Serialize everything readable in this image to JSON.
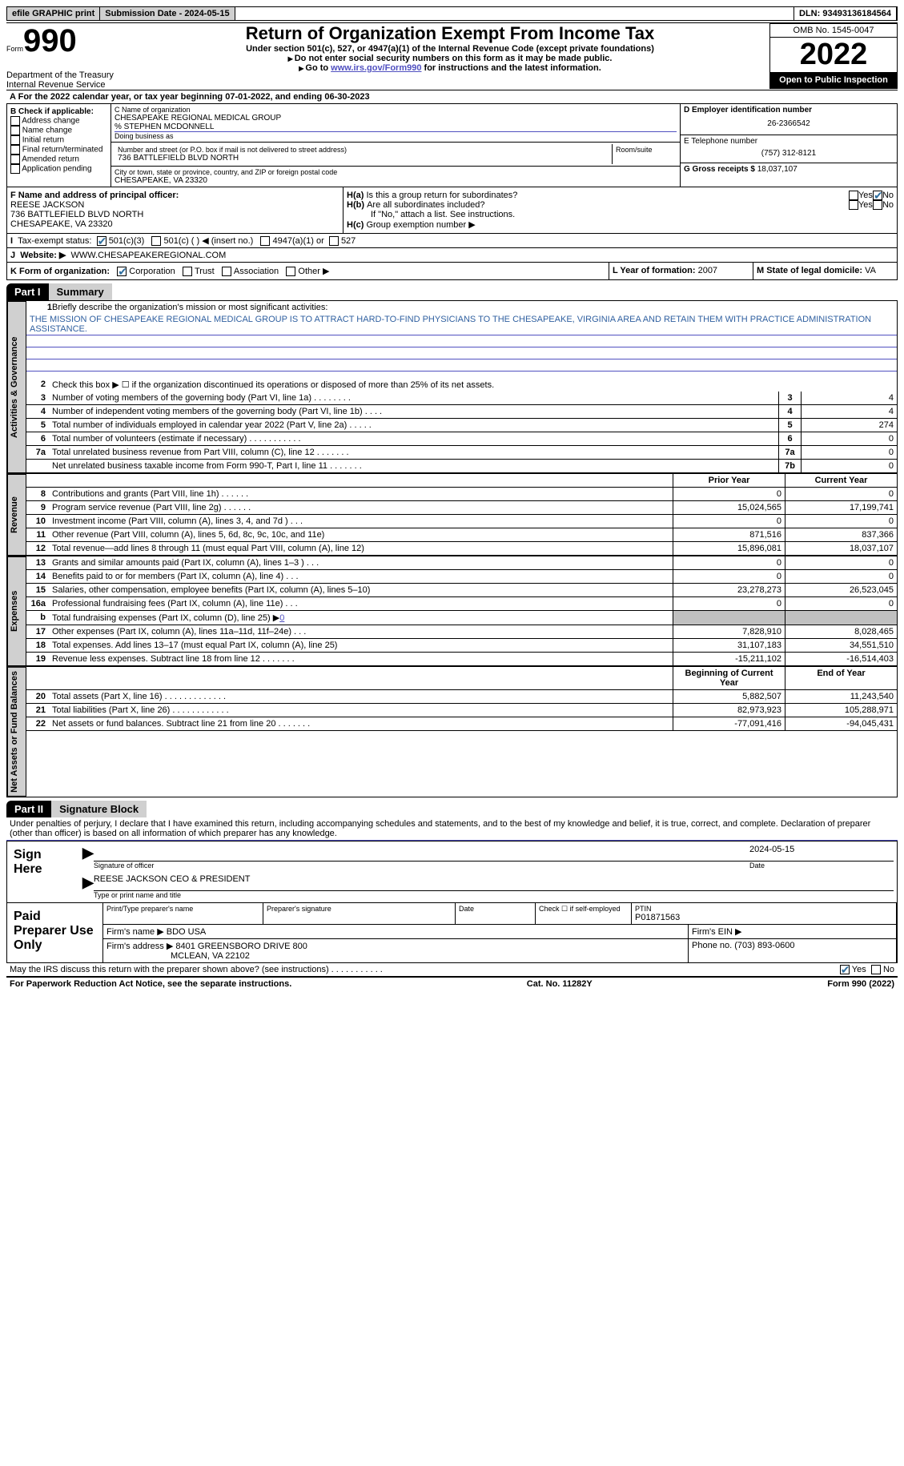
{
  "topbar": {
    "efile": "efile GRAPHIC print",
    "submission": "Submission Date - 2024-05-15",
    "dln": "DLN: 93493136184564"
  },
  "header": {
    "form_label": "Form",
    "form_num": "990",
    "title": "Return of Organization Exempt From Income Tax",
    "subtitle": "Under section 501(c), 527, or 4947(a)(1) of the Internal Revenue Code (except private foundations)",
    "warning": "Do not enter social security numbers on this form as it may be made public.",
    "goto_pre": "Go to ",
    "goto_link": "www.irs.gov/Form990",
    "goto_post": " for instructions and the latest information.",
    "omb": "OMB No. 1545-0047",
    "year": "2022",
    "open": "Open to Public Inspection",
    "dept": "Department of the Treasury",
    "irs": "Internal Revenue Service"
  },
  "line_a": {
    "pre": "For the 2022 calendar year, or tax year beginning ",
    "begin": "07-01-2022",
    "mid": ", and ending ",
    "end": "06-30-2023"
  },
  "col_b": {
    "label": "B Check if applicable:",
    "items": [
      "Address change",
      "Name change",
      "Initial return",
      "Final return/terminated",
      "Amended return",
      "Application pending"
    ]
  },
  "col_c": {
    "name_label": "C Name of organization",
    "name": "CHESAPEAKE REGIONAL MEDICAL GROUP",
    "care_of": "% STEPHEN MCDONNELL",
    "dba_label": "Doing business as",
    "street_label": "Number and street (or P.O. box if mail is not delivered to street address)",
    "room_label": "Room/suite",
    "street": "736 BATTLEFIELD BLVD NORTH",
    "city_label": "City or town, state or province, country, and ZIP or foreign postal code",
    "city": "CHESAPEAKE, VA  23320"
  },
  "col_d": {
    "ein_label": "D Employer identification number",
    "ein": "26-2366542",
    "phone_label": "E Telephone number",
    "phone": "(757) 312-8121",
    "gross_label": "G Gross receipts $",
    "gross": "18,037,107"
  },
  "officer": {
    "label": "F  Name and address of principal officer:",
    "name": "REESE JACKSON",
    "street": "736 BATTLEFIELD BLVD NORTH",
    "city": "CHESAPEAKE, VA  23320"
  },
  "h": {
    "a": "Is this a group return for subordinates?",
    "b": "Are all subordinates included?",
    "b_note": "If \"No,\" attach a list. See instructions.",
    "c": "Group exemption number ▶"
  },
  "tax_status": {
    "label": "Tax-exempt status:",
    "c3": "501(c)(3)",
    "c_other": "501(c) (  ) ◀ (insert no.)",
    "a1": "4947(a)(1) or",
    "s527": "527"
  },
  "website": {
    "label": "Website: ▶",
    "value": "WWW.CHESAPEAKEREGIONAL.COM"
  },
  "k": {
    "label": "K Form of organization:",
    "corp": "Corporation",
    "trust": "Trust",
    "assoc": "Association",
    "other": "Other ▶"
  },
  "l": {
    "label": "L Year of formation:",
    "value": "2007"
  },
  "m": {
    "label": "M State of legal domicile:",
    "value": "VA"
  },
  "parts": {
    "p1": "Part I",
    "p1_title": "Summary",
    "p2": "Part II",
    "p2_title": "Signature Block"
  },
  "vtabs": {
    "gov": "Activities & Governance",
    "rev": "Revenue",
    "exp": "Expenses",
    "net": "Net Assets or Fund Balances"
  },
  "summary": {
    "r1_label": "Briefly describe the organization's mission or most significant activities:",
    "mission": "THE MISSION OF CHESAPEAKE REGIONAL MEDICAL GROUP IS TO ATTRACT HARD-TO-FIND PHYSICIANS TO THE CHESAPEAKE, VIRGINIA AREA AND RETAIN THEM WITH PRACTICE ADMINISTRATION ASSISTANCE.",
    "r2": "Check this box ▶ ☐  if the organization discontinued its operations or disposed of more than 25% of its net assets.",
    "rows_single": [
      {
        "num": "3",
        "txt": "Number of voting members of the governing body (Part VI, line 1a)   .    .    .    .    .    .    .    .",
        "box": "3",
        "val": "4"
      },
      {
        "num": "4",
        "txt": "Number of independent voting members of the governing body (Part VI, line 1b)   .    .    .    .",
        "box": "4",
        "val": "4"
      },
      {
        "num": "5",
        "txt": "Total number of individuals employed in calendar year 2022 (Part V, line 2a)   .    .    .    .    .",
        "box": "5",
        "val": "274"
      },
      {
        "num": "6",
        "txt": "Total number of volunteers (estimate if necessary)    .    .    .    .    .    .    .    .    .    .    .",
        "box": "6",
        "val": "0"
      },
      {
        "num": "7a",
        "txt": "Total unrelated business revenue from Part VIII, column (C), line 12    .    .    .    .    .    .    .",
        "box": "7a",
        "val": "0"
      },
      {
        "num": "",
        "txt": "Net unrelated business taxable income from Form 990-T, Part I, line 11  .    .    .    .    .    .    .",
        "box": "7b",
        "val": "0"
      }
    ],
    "col_hdr_prior": "Prior Year",
    "col_hdr_current": "Current Year",
    "rev_rows": [
      {
        "num": "8",
        "txt": "Contributions and grants (Part VIII, line 1h)   .    .    .    .    .    .",
        "v1": "0",
        "v2": "0"
      },
      {
        "num": "9",
        "txt": "Program service revenue (Part VIII, line 2g)   .    .    .    .    .    .",
        "v1": "15,024,565",
        "v2": "17,199,741"
      },
      {
        "num": "10",
        "txt": "Investment income (Part VIII, column (A), lines 3, 4, and 7d )   .    .    .",
        "v1": "0",
        "v2": "0"
      },
      {
        "num": "11",
        "txt": "Other revenue (Part VIII, column (A), lines 5, 6d, 8c, 9c, 10c, and 11e)",
        "v1": "871,516",
        "v2": "837,366"
      },
      {
        "num": "12",
        "txt": "Total revenue—add lines 8 through 11 (must equal Part VIII, column (A), line 12)",
        "v1": "15,896,081",
        "v2": "18,037,107"
      }
    ],
    "exp_rows": [
      {
        "num": "13",
        "txt": "Grants and similar amounts paid (Part IX, column (A), lines 1–3 )   .    .    .",
        "v1": "0",
        "v2": "0"
      },
      {
        "num": "14",
        "txt": "Benefits paid to or for members (Part IX, column (A), line 4)   .    .    .",
        "v1": "0",
        "v2": "0"
      },
      {
        "num": "15",
        "txt": "Salaries, other compensation, employee benefits (Part IX, column (A), lines 5–10)",
        "v1": "23,278,273",
        "v2": "26,523,045"
      },
      {
        "num": "16a",
        "txt": "Professional fundraising fees (Part IX, column (A), line 11e)   .    .    .",
        "v1": "0",
        "v2": "0"
      }
    ],
    "r16b_pre": "Total fundraising expenses (Part IX, column (D), line 25) ▶",
    "r16b_val": "0",
    "exp_rows2": [
      {
        "num": "17",
        "txt": "Other expenses (Part IX, column (A), lines 11a–11d, 11f–24e)   .    .    .",
        "v1": "7,828,910",
        "v2": "8,028,465"
      },
      {
        "num": "18",
        "txt": "Total expenses. Add lines 13–17 (must equal Part IX, column (A), line 25)",
        "v1": "31,107,183",
        "v2": "34,551,510"
      },
      {
        "num": "19",
        "txt": "Revenue less expenses. Subtract line 18 from line 12  .    .    .    .    .    .    .",
        "v1": "-15,211,102",
        "v2": "-16,514,403"
      }
    ],
    "col_hdr_begin": "Beginning of Current Year",
    "col_hdr_end": "End of Year",
    "net_rows": [
      {
        "num": "20",
        "txt": "Total assets (Part X, line 16)  .    .    .    .    .    .    .    .    .    .    .    .    .",
        "v1": "5,882,507",
        "v2": "11,243,540"
      },
      {
        "num": "21",
        "txt": "Total liabilities (Part X, line 26)  .    .    .    .    .    .    .    .    .    .    .    .",
        "v1": "82,973,923",
        "v2": "105,288,971"
      },
      {
        "num": "22",
        "txt": "Net assets or fund balances. Subtract line 21 from line 20  .    .    .    .    .    .    .",
        "v1": "-77,091,416",
        "v2": "-94,045,431"
      }
    ]
  },
  "sig": {
    "penalties": "Under penalties of perjury, I declare that I have examined this return, including accompanying schedules and statements, and to the best of my knowledge and belief, it is true, correct, and complete. Declaration of preparer (other than officer) is based on all information of which preparer has any knowledge.",
    "sign_here": "Sign Here",
    "sig_officer": "Signature of officer",
    "date": "Date",
    "sig_date": "2024-05-15",
    "name_title": "REESE JACKSON CEO & PRESIDENT",
    "type_name": "Type or print name and title"
  },
  "preparer": {
    "label": "Paid Preparer Use Only",
    "print_name": "Print/Type preparer's name",
    "prep_sig": "Preparer's signature",
    "date": "Date",
    "check_self": "Check ☐ if self-employed",
    "ptin_label": "PTIN",
    "ptin": "P01871563",
    "firm_name_label": "Firm's name    ▶",
    "firm_name": "BDO USA",
    "firm_ein_label": "Firm's EIN ▶",
    "firm_addr_label": "Firm's address ▶",
    "firm_addr1": "8401 GREENSBORO DRIVE 800",
    "firm_addr2": "MCLEAN, VA  22102",
    "phone_label": "Phone no.",
    "phone": "(703) 893-0600"
  },
  "footer": {
    "discuss": "May the IRS discuss this return with the preparer shown above? (see instructions)   .    .    .    .    .    .    .    .    .    .    .",
    "yes": "Yes",
    "no": "No",
    "paperwork": "For Paperwork Reduction Act Notice, see the separate instructions.",
    "cat": "Cat. No. 11282Y",
    "formref": "Form 990 (2022)"
  }
}
